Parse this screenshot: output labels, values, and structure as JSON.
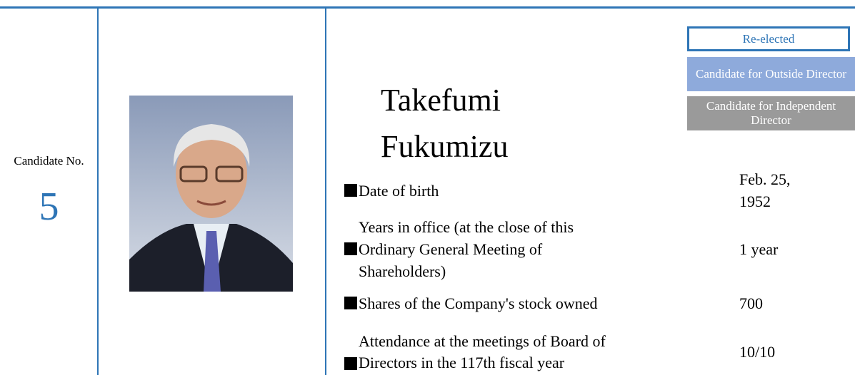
{
  "candidate": {
    "label": "Candidate No.",
    "number": "5"
  },
  "name": "Takefumi Fukumizu",
  "badges": [
    "Re-elected",
    "Candidate for Outside Director",
    "Candidate for Independent Director"
  ],
  "info": [
    {
      "label": "Date of birth",
      "value": "Feb. 25, 1952"
    },
    {
      "label": "Years in office (at the close of this Ordinary General Meeting of Shareholders)",
      "value": "1 year"
    },
    {
      "label": "Shares of the Company's stock owned",
      "value": "700"
    },
    {
      "label": "Attendance at the meetings of Board of Directors in the 117th fiscal year",
      "value": "10/10"
    }
  ]
}
